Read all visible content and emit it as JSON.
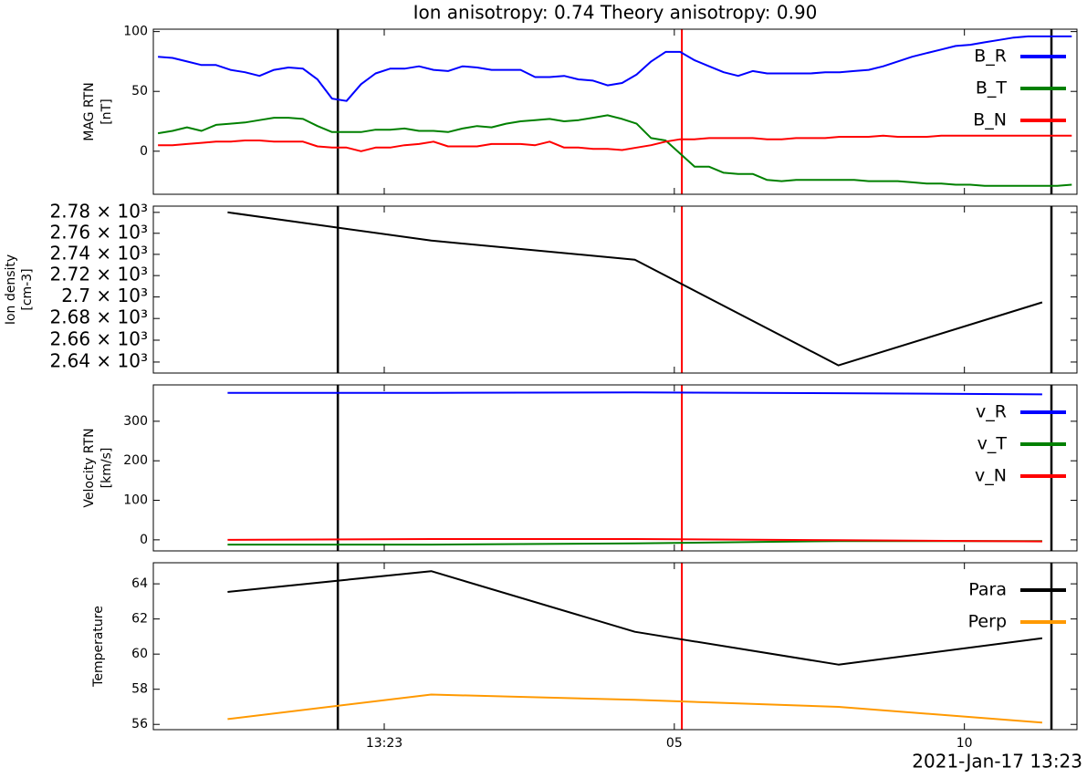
{
  "chart_data": [
    {
      "type": "line",
      "title": "Ion anisotropy: 0.74 Theory anisotropy: 0.90",
      "ylabel": [
        "MAG RTN",
        "[nT]"
      ],
      "x": [
        -3.9,
        -3.65,
        -3.4,
        -3.15,
        -2.9,
        -2.65,
        -2.4,
        -2.15,
        -1.9,
        -1.65,
        -1.4,
        -1.15,
        -0.9,
        -0.65,
        -0.4,
        -0.15,
        0.1,
        0.35,
        0.6,
        0.85,
        1.1,
        1.35,
        1.6,
        1.85,
        2.1,
        2.35,
        2.6,
        2.85,
        3.1,
        3.35,
        3.6,
        3.85,
        4.1,
        4.35,
        4.6,
        4.85,
        5.1,
        5.35,
        5.6,
        5.85,
        6.1,
        6.35,
        6.6,
        6.85,
        7.1,
        7.35,
        7.6,
        7.85,
        8.1,
        8.35,
        8.6,
        8.85,
        9.1,
        9.35,
        9.6,
        9.85,
        10.1,
        10.35,
        10.6,
        10.85,
        11.1,
        11.35,
        11.6,
        11.85
      ],
      "series": [
        {
          "name": "B_R",
          "color": "#0000ff",
          "values": [
            79,
            78,
            75,
            72,
            72,
            68,
            66,
            63,
            68,
            70,
            69,
            60,
            44,
            42,
            56,
            65,
            69,
            69,
            71,
            68,
            67,
            71,
            70,
            68,
            68,
            68,
            62,
            62,
            63,
            60,
            59,
            55,
            57,
            64,
            75,
            83,
            83,
            76,
            71,
            66,
            63,
            67,
            65,
            65,
            65,
            65,
            66,
            66,
            67,
            68,
            71,
            75,
            79,
            82,
            85,
            88,
            89,
            91,
            93,
            95,
            96,
            96,
            96,
            96
          ]
        },
        {
          "name": "B_T",
          "color": "#008000",
          "values": [
            15,
            17,
            20,
            17,
            22,
            23,
            24,
            26,
            28,
            28,
            27,
            21,
            16,
            16,
            16,
            18,
            18,
            19,
            17,
            17,
            16,
            19,
            21,
            20,
            23,
            25,
            26,
            27,
            25,
            26,
            28,
            30,
            27,
            23,
            11,
            9,
            -2,
            -13,
            -13,
            -18,
            -19,
            -19,
            -24,
            -25,
            -24,
            -24,
            -24,
            -24,
            -24,
            -25,
            -25,
            -25,
            -26,
            -27,
            -27,
            -28,
            -28,
            -29,
            -29,
            -29,
            -29,
            -29,
            -29,
            -28
          ]
        },
        {
          "name": "B_N",
          "color": "#ff0000",
          "values": [
            5,
            5,
            6,
            7,
            8,
            8,
            9,
            9,
            8,
            8,
            8,
            4,
            3,
            3,
            0,
            3,
            3,
            5,
            6,
            8,
            4,
            4,
            4,
            6,
            6,
            6,
            5,
            8,
            3,
            3,
            2,
            2,
            1,
            3,
            5,
            8,
            10,
            10,
            11,
            11,
            11,
            11,
            10,
            10,
            11,
            11,
            11,
            12,
            12,
            12,
            13,
            12,
            12,
            12,
            13,
            13,
            13,
            13,
            13,
            13,
            13,
            13,
            13,
            13
          ]
        }
      ],
      "xlim": [
        -3.98,
        11.94
      ],
      "xticks": [
        {
          "value": 0,
          "label": "13:23"
        },
        {
          "value": 5,
          "label": "05"
        },
        {
          "value": 10,
          "label": "10"
        }
      ],
      "ylim": [
        -36,
        102
      ],
      "yticks": [
        0,
        50,
        100
      ],
      "legend": "upper right",
      "vlines": [
        {
          "x": -0.8,
          "color": "#000000"
        },
        {
          "x": 5.13,
          "color": "#ff0000"
        },
        {
          "x": 11.5,
          "color": "#000000"
        }
      ]
    },
    {
      "type": "line",
      "ylabel": [
        "Ion density",
        "[cm-3]"
      ],
      "x": [
        -2.7,
        0.81,
        4.32,
        7.83,
        11.34
      ],
      "values": [
        2780,
        2753,
        2735,
        2637,
        2695
      ],
      "color": "#000000",
      "log_y": true,
      "xlim": [
        -3.98,
        11.94
      ],
      "xticks": [
        {
          "value": 0,
          "label": "13:23"
        },
        {
          "value": 5,
          "label": "05"
        },
        {
          "value": 10,
          "label": "10"
        }
      ],
      "ylim": [
        2630,
        2786
      ],
      "yticks": [
        {
          "value": 2640,
          "label": "2.64 × 10³"
        },
        {
          "value": 2660,
          "label": "2.66 × 10³"
        },
        {
          "value": 2680,
          "label": "2.68 × 10³"
        },
        {
          "value": 2700,
          "label": "2.7 × 10³"
        },
        {
          "value": 2720,
          "label": "2.72 × 10³"
        },
        {
          "value": 2740,
          "label": "2.74 × 10³"
        },
        {
          "value": 2760,
          "label": "2.76 × 10³"
        },
        {
          "value": 2780,
          "label": "2.78 × 10³"
        }
      ],
      "vlines": [
        {
          "x": -0.8,
          "color": "#000000"
        },
        {
          "x": 5.13,
          "color": "#ff0000"
        },
        {
          "x": 11.5,
          "color": "#000000"
        }
      ]
    },
    {
      "type": "line",
      "ylabel": [
        "Velocity RTN",
        "[km/s]"
      ],
      "x": [
        -2.7,
        0.81,
        4.32,
        7.83,
        11.34
      ],
      "series": [
        {
          "name": "v_R",
          "color": "#0000ff",
          "values": [
            372,
            372,
            373,
            371,
            368
          ]
        },
        {
          "name": "v_T",
          "color": "#008000",
          "values": [
            -12,
            -12,
            -9,
            -3,
            -3
          ]
        },
        {
          "name": "v_N",
          "color": "#ff0000",
          "values": [
            0,
            2,
            2,
            -1,
            -4
          ]
        }
      ],
      "xlim": [
        -3.98,
        11.94
      ],
      "xticks": [
        {
          "value": 0,
          "label": "13:23"
        },
        {
          "value": 5,
          "label": "05"
        },
        {
          "value": 10,
          "label": "10"
        }
      ],
      "ylim": [
        -28,
        392
      ],
      "yticks": [
        0,
        100,
        200,
        300
      ],
      "legend": "upper right",
      "vlines": [
        {
          "x": -0.8,
          "color": "#000000"
        },
        {
          "x": 5.13,
          "color": "#ff0000"
        },
        {
          "x": 11.5,
          "color": "#000000"
        }
      ]
    },
    {
      "type": "line",
      "ylabel": [
        "Temperature"
      ],
      "xlabel": "2021-Jan-17 13:23",
      "x": [
        -2.7,
        0.81,
        4.32,
        7.83,
        11.34
      ],
      "series": [
        {
          "name": "Para",
          "color": "#000000",
          "values": [
            63.54,
            64.72,
            61.27,
            59.4,
            60.9
          ]
        },
        {
          "name": "Perp",
          "color": "#ff9900",
          "values": [
            56.3,
            57.7,
            57.4,
            57.0,
            56.1
          ]
        }
      ],
      "xlim": [
        -3.98,
        11.94
      ],
      "xticks": [
        {
          "value": 0,
          "label": "13:23"
        },
        {
          "value": 5,
          "label": "05"
        },
        {
          "value": 10,
          "label": "10"
        }
      ],
      "ylim": [
        55.7,
        65.2
      ],
      "yticks": [
        56,
        58,
        60,
        62,
        64
      ],
      "legend": "upper right",
      "vlines": [
        {
          "x": -0.8,
          "color": "#000000"
        },
        {
          "x": 5.13,
          "color": "#ff0000"
        },
        {
          "x": 11.5,
          "color": "#000000"
        }
      ]
    }
  ]
}
